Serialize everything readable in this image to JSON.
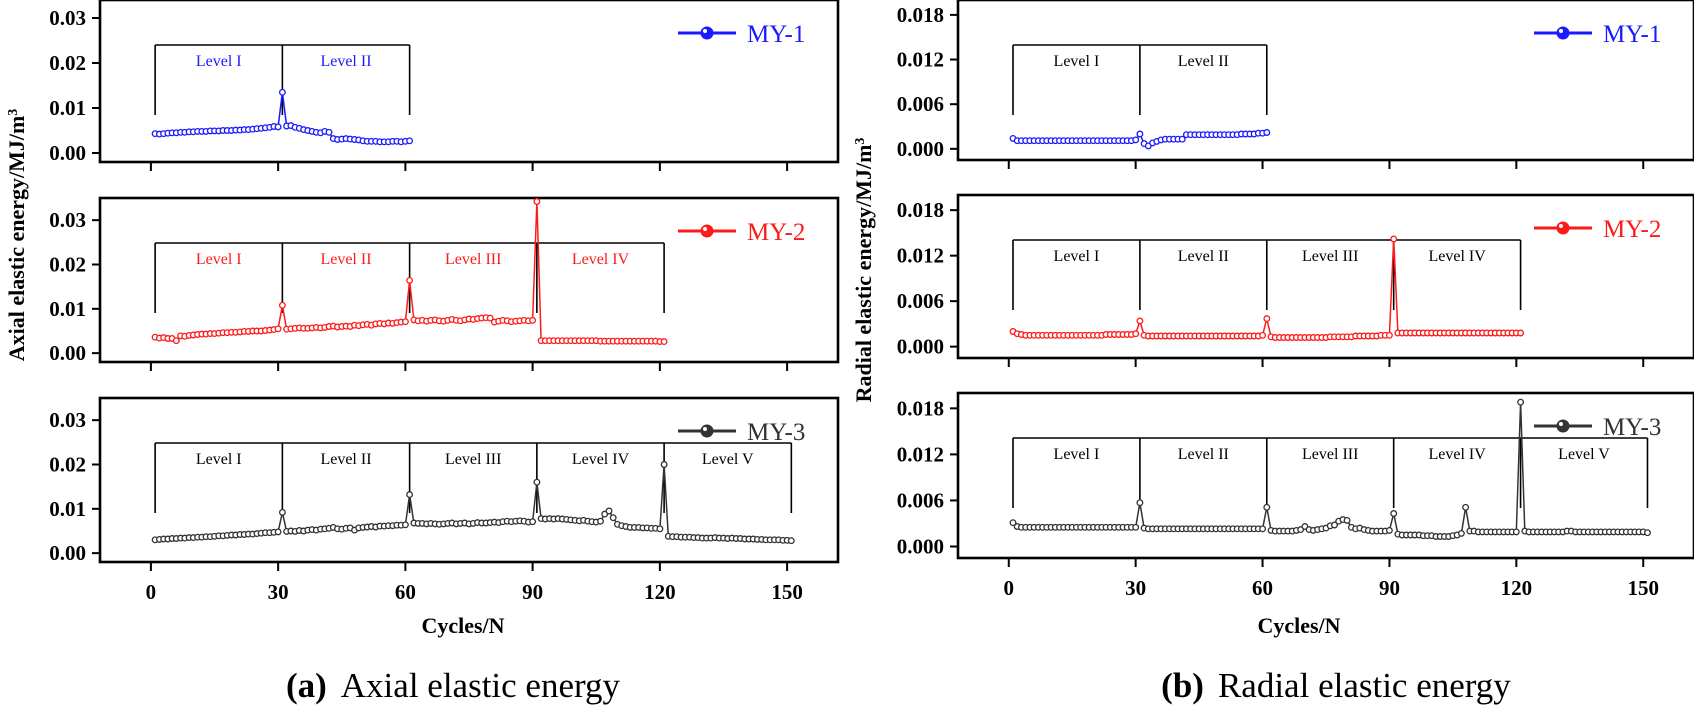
{
  "figure": {
    "caption_a_label": "(a)",
    "caption_a_text": "Axial elastic energy",
    "caption_b_label": "(b)",
    "caption_b_text": "Radial elastic energy"
  },
  "colors": {
    "MY-1": "#1a1aff",
    "MY-2": "#ff1a1a",
    "MY-3": "#333333"
  },
  "chart_data": [
    {
      "type": "line",
      "panel": "a",
      "title": "Axial elastic energy",
      "xlabel": "Cycles/N",
      "ylabel": "Axial elastic energy/MJ/m³",
      "xlim": [
        -12,
        162
      ],
      "xticks": [
        0,
        30,
        60,
        90,
        120,
        150
      ],
      "subplots": [
        {
          "series_name": "MY-1",
          "ylim": [
            -0.002,
            0.034
          ],
          "yticks": [
            0.0,
            0.01,
            0.02,
            0.03
          ],
          "ytick_labels": [
            "0.00",
            "0.01",
            "0.02",
            "0.03"
          ],
          "levels": [
            "Level I",
            "Level II"
          ],
          "level_bounds": [
            1,
            31,
            61
          ],
          "x_start": 1,
          "values": [
            0.0043,
            0.0042,
            0.0043,
            0.0044,
            0.0045,
            0.0045,
            0.0046,
            0.0046,
            0.0047,
            0.0047,
            0.0048,
            0.0048,
            0.0048,
            0.0049,
            0.0049,
            0.0049,
            0.005,
            0.005,
            0.005,
            0.0051,
            0.0051,
            0.0052,
            0.0052,
            0.0053,
            0.0054,
            0.0055,
            0.0056,
            0.0057,
            0.0059,
            0.0058,
            0.0135,
            0.006,
            0.0061,
            0.0057,
            0.0055,
            0.0052,
            0.005,
            0.0048,
            0.0046,
            0.0045,
            0.0048,
            0.0046,
            0.0032,
            0.003,
            0.0031,
            0.0032,
            0.0031,
            0.003,
            0.0029,
            0.0027,
            0.0026,
            0.0026,
            0.0026,
            0.0025,
            0.0025,
            0.0025,
            0.0026,
            0.0026,
            0.0025,
            0.0026,
            0.0027
          ]
        },
        {
          "series_name": "MY-2",
          "ylim": [
            -0.002,
            0.035
          ],
          "yticks": [
            0.0,
            0.01,
            0.02,
            0.03
          ],
          "ytick_labels": [
            "0.00",
            "0.01",
            "0.02",
            "0.03"
          ],
          "levels": [
            "Level I",
            "Level II",
            "Level III",
            "Level IV"
          ],
          "level_bounds": [
            1,
            31,
            61,
            91,
            121
          ],
          "x_start": 1,
          "values": [
            0.0036,
            0.0034,
            0.0035,
            0.0033,
            0.0033,
            0.0028,
            0.0039,
            0.0038,
            0.004,
            0.0041,
            0.0042,
            0.0043,
            0.0043,
            0.0044,
            0.0044,
            0.0045,
            0.0046,
            0.0046,
            0.0047,
            0.0047,
            0.0048,
            0.0049,
            0.0049,
            0.005,
            0.005,
            0.005,
            0.0051,
            0.0052,
            0.0053,
            0.0055,
            0.0108,
            0.0054,
            0.0055,
            0.0056,
            0.0057,
            0.0056,
            0.0056,
            0.0057,
            0.0058,
            0.0057,
            0.0058,
            0.006,
            0.0061,
            0.0059,
            0.006,
            0.0061,
            0.006,
            0.0063,
            0.0062,
            0.0064,
            0.0065,
            0.0063,
            0.0066,
            0.0067,
            0.0066,
            0.0068,
            0.0067,
            0.0069,
            0.007,
            0.0071,
            0.0164,
            0.0075,
            0.0073,
            0.0074,
            0.0072,
            0.0074,
            0.0075,
            0.0073,
            0.0072,
            0.0074,
            0.0076,
            0.0074,
            0.0073,
            0.0075,
            0.0077,
            0.0076,
            0.0078,
            0.0079,
            0.008,
            0.0079,
            0.007,
            0.0072,
            0.0074,
            0.0073,
            0.0071,
            0.0072,
            0.0073,
            0.0074,
            0.0073,
            0.0074,
            0.0342,
            0.0028,
            0.0028,
            0.0028,
            0.0028,
            0.0028,
            0.0028,
            0.0028,
            0.0028,
            0.0028,
            0.0028,
            0.0028,
            0.0028,
            0.0028,
            0.0028,
            0.0027,
            0.0027,
            0.0027,
            0.0027,
            0.0027,
            0.0027,
            0.0027,
            0.0027,
            0.0027,
            0.0027,
            0.0027,
            0.0027,
            0.0027,
            0.0027,
            0.0026,
            0.0026
          ]
        },
        {
          "series_name": "MY-3",
          "ylim": [
            -0.002,
            0.035
          ],
          "yticks": [
            0.0,
            0.01,
            0.02,
            0.03
          ],
          "ytick_labels": [
            "0.00",
            "0.01",
            "0.02",
            "0.03"
          ],
          "levels": [
            "Level I",
            "Level II",
            "Level III",
            "Level IV",
            "Level V"
          ],
          "level_bounds": [
            1,
            31,
            61,
            91,
            121,
            151
          ],
          "x_start": 1,
          "values": [
            0.003,
            0.0031,
            0.0032,
            0.0032,
            0.0033,
            0.0033,
            0.0034,
            0.0034,
            0.0035,
            0.0035,
            0.0036,
            0.0036,
            0.0037,
            0.0037,
            0.0038,
            0.0039,
            0.0039,
            0.004,
            0.0041,
            0.0041,
            0.0042,
            0.0042,
            0.0043,
            0.0043,
            0.0044,
            0.0045,
            0.0046,
            0.0046,
            0.0047,
            0.0048,
            0.0092,
            0.0049,
            0.005,
            0.0049,
            0.0051,
            0.005,
            0.0052,
            0.0053,
            0.0052,
            0.0054,
            0.0055,
            0.0056,
            0.0058,
            0.0055,
            0.0054,
            0.0056,
            0.0057,
            0.0052,
            0.0057,
            0.0058,
            0.0059,
            0.006,
            0.0059,
            0.0061,
            0.0061,
            0.0062,
            0.0062,
            0.0063,
            0.0063,
            0.0064,
            0.0132,
            0.0068,
            0.0067,
            0.0067,
            0.0066,
            0.0067,
            0.0066,
            0.0065,
            0.0066,
            0.0067,
            0.0068,
            0.0066,
            0.0067,
            0.0068,
            0.0066,
            0.0067,
            0.0069,
            0.0068,
            0.0068,
            0.0069,
            0.007,
            0.0069,
            0.0071,
            0.0072,
            0.0071,
            0.0072,
            0.0073,
            0.0072,
            0.007,
            0.0071,
            0.016,
            0.0078,
            0.0077,
            0.0078,
            0.0077,
            0.0078,
            0.0077,
            0.0076,
            0.0075,
            0.0074,
            0.0073,
            0.0074,
            0.0072,
            0.0071,
            0.007,
            0.0072,
            0.0088,
            0.0095,
            0.008,
            0.0065,
            0.0062,
            0.006,
            0.0058,
            0.0058,
            0.0058,
            0.0057,
            0.0057,
            0.0056,
            0.0056,
            0.0055,
            0.02,
            0.0038,
            0.0037,
            0.0037,
            0.0036,
            0.0036,
            0.0036,
            0.0035,
            0.0035,
            0.0034,
            0.0034,
            0.0034,
            0.0035,
            0.0034,
            0.0034,
            0.0033,
            0.0034,
            0.0033,
            0.0033,
            0.0032,
            0.0032,
            0.0032,
            0.0031,
            0.0031,
            0.003,
            0.003,
            0.003,
            0.003,
            0.0029,
            0.0029,
            0.0028
          ]
        }
      ]
    },
    {
      "type": "line",
      "panel": "b",
      "title": "Radial elastic energy",
      "xlabel": "Cycles/N",
      "ylabel": "Radial elastic energy/MJ/m³",
      "xlim": [
        -12,
        162
      ],
      "xticks": [
        0,
        30,
        60,
        90,
        120,
        150
      ],
      "subplots": [
        {
          "series_name": "MY-1",
          "ylim": [
            -0.0015,
            0.02
          ],
          "yticks": [
            0.0,
            0.006,
            0.012,
            0.018
          ],
          "ytick_labels": [
            "0.000",
            "0.006",
            "0.012",
            "0.018"
          ],
          "levels": [
            "Level I",
            "Level II"
          ],
          "level_bounds": [
            1,
            31,
            61
          ],
          "x_start": 1,
          "values": [
            0.0014,
            0.0011,
            0.0011,
            0.0011,
            0.0011,
            0.0011,
            0.0011,
            0.0011,
            0.0011,
            0.0011,
            0.0011,
            0.0011,
            0.0011,
            0.0011,
            0.0011,
            0.0011,
            0.0011,
            0.0011,
            0.0011,
            0.0011,
            0.0011,
            0.0011,
            0.0011,
            0.0011,
            0.0011,
            0.0011,
            0.0011,
            0.0011,
            0.0011,
            0.0012,
            0.002,
            0.0007,
            0.0004,
            0.0008,
            0.001,
            0.0012,
            0.0013,
            0.0013,
            0.0013,
            0.0013,
            0.0013,
            0.0019,
            0.0019,
            0.0019,
            0.0019,
            0.0019,
            0.0019,
            0.0019,
            0.0019,
            0.0019,
            0.0019,
            0.0019,
            0.0019,
            0.0019,
            0.002,
            0.002,
            0.002,
            0.002,
            0.0021,
            0.0021,
            0.0022
          ]
        },
        {
          "series_name": "MY-2",
          "ylim": [
            -0.0015,
            0.02
          ],
          "yticks": [
            0.0,
            0.006,
            0.012,
            0.018
          ],
          "ytick_labels": [
            "0.000",
            "0.006",
            "0.012",
            "0.018"
          ],
          "levels": [
            "Level I",
            "Level II",
            "Level III",
            "Level IV"
          ],
          "level_bounds": [
            1,
            31,
            61,
            91,
            121
          ],
          "x_start": 1,
          "values": [
            0.002,
            0.0017,
            0.0016,
            0.0015,
            0.0015,
            0.0015,
            0.0015,
            0.0015,
            0.0015,
            0.0015,
            0.0015,
            0.0015,
            0.0015,
            0.0015,
            0.0015,
            0.0015,
            0.0015,
            0.0015,
            0.0015,
            0.0015,
            0.0015,
            0.0015,
            0.0016,
            0.0016,
            0.0016,
            0.0016,
            0.0016,
            0.0016,
            0.0016,
            0.0017,
            0.0034,
            0.0015,
            0.0014,
            0.0014,
            0.0014,
            0.0014,
            0.0014,
            0.0014,
            0.0014,
            0.0014,
            0.0014,
            0.0014,
            0.0014,
            0.0014,
            0.0014,
            0.0014,
            0.0014,
            0.0014,
            0.0014,
            0.0014,
            0.0014,
            0.0014,
            0.0014,
            0.0014,
            0.0014,
            0.0014,
            0.0014,
            0.0014,
            0.0014,
            0.0015,
            0.0037,
            0.0013,
            0.0012,
            0.0012,
            0.0012,
            0.0012,
            0.0012,
            0.0012,
            0.0012,
            0.0012,
            0.0012,
            0.0012,
            0.0012,
            0.0012,
            0.0012,
            0.0013,
            0.0013,
            0.0013,
            0.0013,
            0.0013,
            0.0013,
            0.0014,
            0.0014,
            0.0014,
            0.0014,
            0.0014,
            0.0014,
            0.0015,
            0.0015,
            0.0015,
            0.0142,
            0.0018,
            0.0018,
            0.0018,
            0.0018,
            0.0018,
            0.0018,
            0.0018,
            0.0018,
            0.0018,
            0.0018,
            0.0018,
            0.0018,
            0.0018,
            0.0018,
            0.0018,
            0.0018,
            0.0018,
            0.0018,
            0.0018,
            0.0018,
            0.0018,
            0.0018,
            0.0018,
            0.0018,
            0.0018,
            0.0018,
            0.0018,
            0.0018,
            0.0018,
            0.0018
          ]
        },
        {
          "series_name": "MY-3",
          "ylim": [
            -0.0015,
            0.02
          ],
          "yticks": [
            0.0,
            0.006,
            0.012,
            0.018
          ],
          "ytick_labels": [
            "0.000",
            "0.006",
            "0.012",
            "0.018"
          ],
          "levels": [
            "Level I",
            "Level II",
            "Level III",
            "Level IV",
            "Level V"
          ],
          "level_bounds": [
            1,
            31,
            61,
            91,
            121,
            151
          ],
          "x_start": 1,
          "values": [
            0.0031,
            0.0026,
            0.0025,
            0.0025,
            0.0025,
            0.0025,
            0.0025,
            0.0025,
            0.0025,
            0.0025,
            0.0025,
            0.0025,
            0.0025,
            0.0025,
            0.0025,
            0.0025,
            0.0025,
            0.0025,
            0.0025,
            0.0025,
            0.0025,
            0.0025,
            0.0025,
            0.0025,
            0.0025,
            0.0025,
            0.0025,
            0.0025,
            0.0025,
            0.0025,
            0.0057,
            0.0024,
            0.0023,
            0.0023,
            0.0023,
            0.0023,
            0.0023,
            0.0023,
            0.0023,
            0.0023,
            0.0023,
            0.0023,
            0.0023,
            0.0023,
            0.0023,
            0.0023,
            0.0023,
            0.0023,
            0.0023,
            0.0023,
            0.0023,
            0.0023,
            0.0023,
            0.0023,
            0.0023,
            0.0023,
            0.0023,
            0.0023,
            0.0023,
            0.0023,
            0.0051,
            0.0021,
            0.002,
            0.002,
            0.002,
            0.002,
            0.002,
            0.0021,
            0.0022,
            0.0026,
            0.0022,
            0.0021,
            0.0022,
            0.0023,
            0.0024,
            0.0027,
            0.0028,
            0.0033,
            0.0035,
            0.0034,
            0.0025,
            0.0023,
            0.0024,
            0.0022,
            0.0021,
            0.002,
            0.002,
            0.002,
            0.002,
            0.0021,
            0.0043,
            0.0016,
            0.0015,
            0.0015,
            0.0015,
            0.0015,
            0.0015,
            0.0014,
            0.0014,
            0.0014,
            0.0013,
            0.0013,
            0.0013,
            0.0013,
            0.0014,
            0.0015,
            0.0017,
            0.0051,
            0.002,
            0.002,
            0.0019,
            0.0019,
            0.0019,
            0.0019,
            0.0019,
            0.0019,
            0.0019,
            0.0019,
            0.0019,
            0.0019,
            0.0188,
            0.002,
            0.0019,
            0.0019,
            0.0019,
            0.0019,
            0.0019,
            0.0019,
            0.0019,
            0.0019,
            0.0019,
            0.002,
            0.002,
            0.0019,
            0.0019,
            0.0019,
            0.0019,
            0.0019,
            0.0019,
            0.0019,
            0.0019,
            0.0019,
            0.0019,
            0.0019,
            0.0019,
            0.0019,
            0.0019,
            0.0019,
            0.0019,
            0.0019,
            0.0018
          ]
        }
      ]
    }
  ]
}
